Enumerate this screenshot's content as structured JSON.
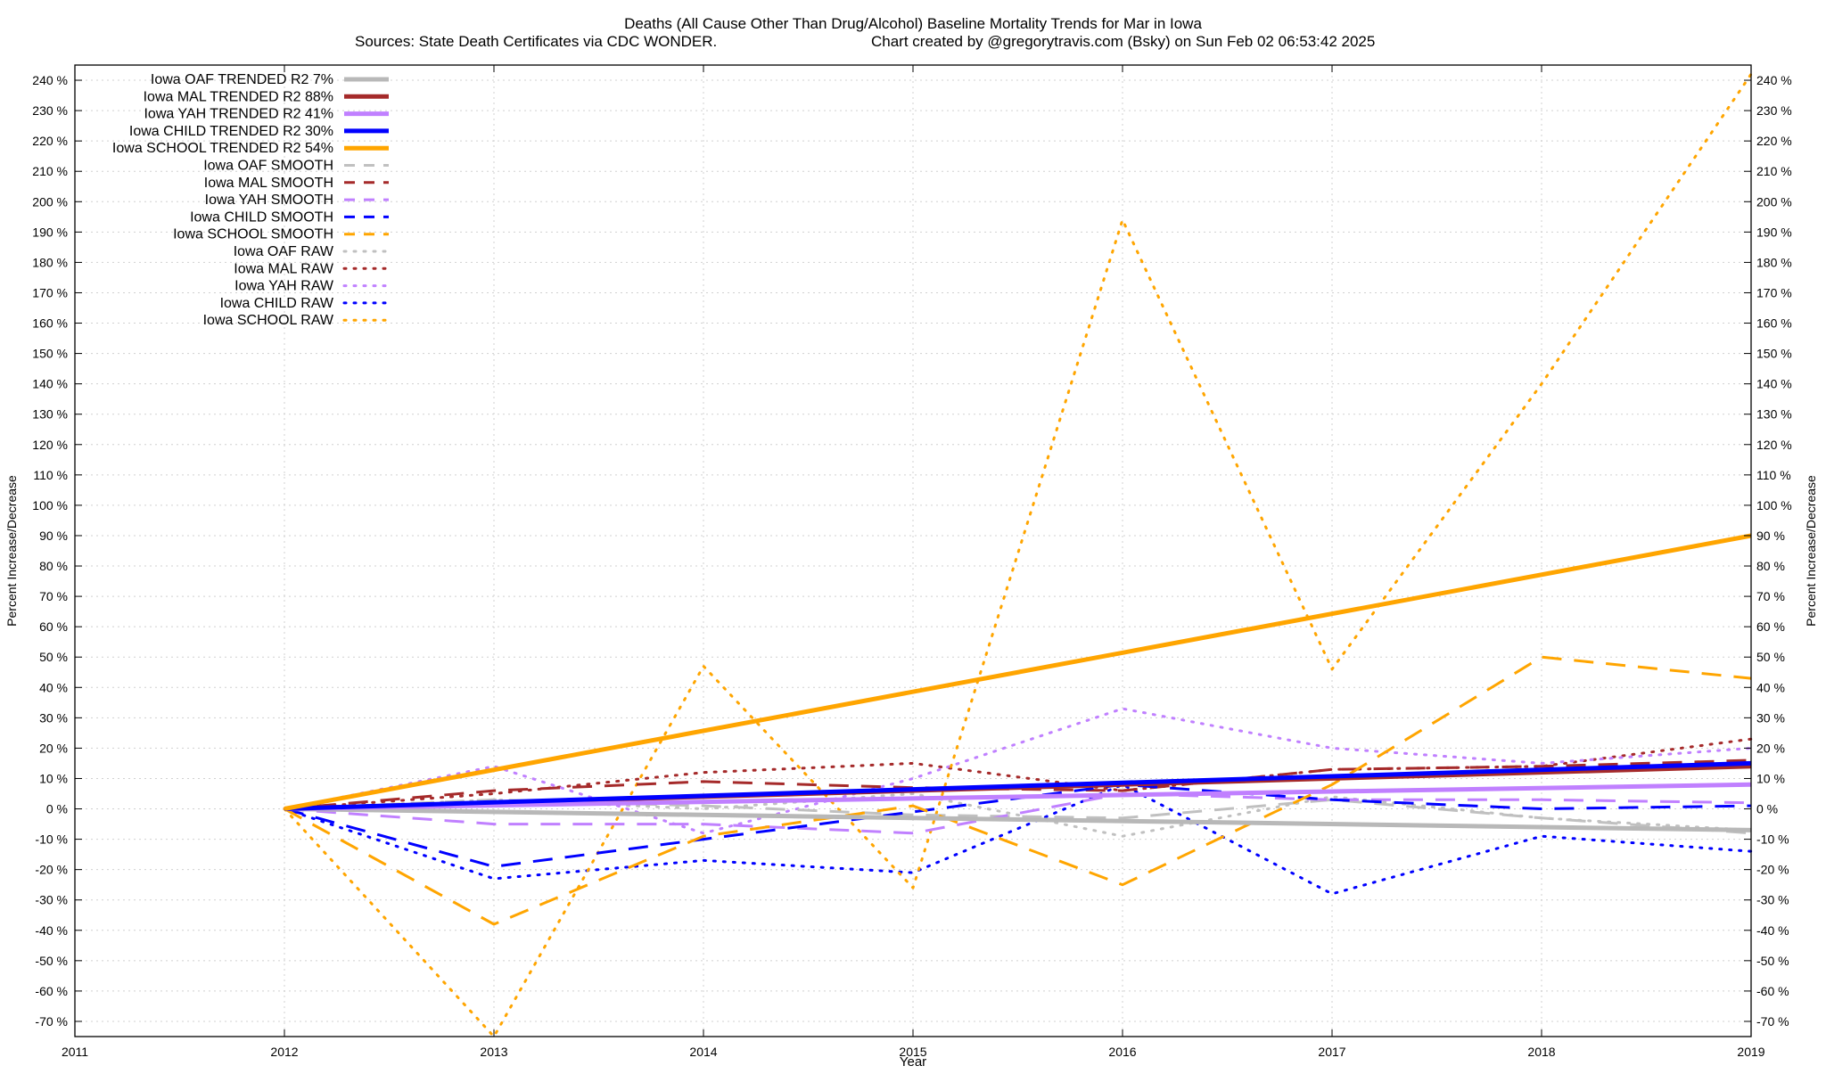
{
  "chart_data": {
    "type": "line",
    "title_line1": "Deaths (All Cause Other Than Drug/Alcohol)  Baseline Mortality Trends for Mar in Iowa",
    "title_line2_left": "Sources: State Death Certificates via CDC WONDER.",
    "title_line2_right": "Chart created by @gregorytravis.com (Bsky) on Sun Feb 02 06:53:42 2025",
    "xlabel": "Year",
    "ylabel": "Percent Increase/Decrease",
    "xlim": [
      2011,
      2019
    ],
    "ylim": [
      -75,
      245
    ],
    "x_ticks": [
      2011,
      2012,
      2013,
      2014,
      2015,
      2016,
      2017,
      2018,
      2019
    ],
    "y_ticks": [
      -70,
      -60,
      -50,
      -40,
      -30,
      -20,
      -10,
      0,
      10,
      20,
      30,
      40,
      50,
      60,
      70,
      80,
      90,
      100,
      110,
      120,
      130,
      140,
      150,
      160,
      170,
      180,
      190,
      200,
      210,
      220,
      230,
      240
    ],
    "y_tick_suffix": " %",
    "grid": true,
    "legend_position": "top-left",
    "series": [
      {
        "name": "Iowa OAF TRENDED R2  7%",
        "style": "trend",
        "color": "#b8b8b8",
        "x": [
          2012,
          2019
        ],
        "values": [
          0,
          -7
        ]
      },
      {
        "name": "Iowa MAL TRENDED R2  88%",
        "style": "trend",
        "color": "#a52a2a",
        "x": [
          2012,
          2019
        ],
        "values": [
          0,
          14
        ]
      },
      {
        "name": "Iowa YAH TRENDED R2  41%",
        "style": "trend",
        "color": "#c080ff",
        "x": [
          2012,
          2019
        ],
        "values": [
          0,
          8
        ]
      },
      {
        "name": "Iowa CHILD TRENDED R2  30%",
        "style": "trend",
        "color": "#0000ff",
        "x": [
          2012,
          2019
        ],
        "values": [
          0,
          15
        ]
      },
      {
        "name": "Iowa SCHOOL TRENDED R2  54%",
        "style": "trend",
        "color": "#ffa500",
        "x": [
          2012,
          2019
        ],
        "values": [
          0,
          90
        ]
      },
      {
        "name": "Iowa OAF SMOOTH",
        "style": "smooth",
        "color": "#c0c0c0",
        "x": [
          2012,
          2013,
          2014,
          2015,
          2016,
          2017,
          2018,
          2019
        ],
        "values": [
          0,
          3,
          1,
          -2,
          -3,
          3,
          -3,
          -8
        ]
      },
      {
        "name": "Iowa MAL SMOOTH",
        "style": "smooth",
        "color": "#a52a2a",
        "x": [
          2012,
          2013,
          2014,
          2015,
          2016,
          2017,
          2018,
          2019
        ],
        "values": [
          0,
          6,
          9,
          7,
          6,
          13,
          14,
          16
        ]
      },
      {
        "name": "Iowa YAH SMOOTH",
        "style": "smooth",
        "color": "#c080ff",
        "x": [
          2012,
          2013,
          2014,
          2015,
          2016,
          2017,
          2018,
          2019
        ],
        "values": [
          0,
          -5,
          -5,
          -8,
          5,
          3,
          3,
          2
        ]
      },
      {
        "name": "Iowa CHILD SMOOTH",
        "style": "smooth",
        "color": "#0000ff",
        "x": [
          2012,
          2013,
          2014,
          2015,
          2016,
          2017,
          2018,
          2019
        ],
        "values": [
          0,
          -19,
          -10,
          -1,
          8,
          3,
          0,
          1
        ]
      },
      {
        "name": "Iowa SCHOOL SMOOTH",
        "style": "smooth",
        "color": "#ffa500",
        "x": [
          2012,
          2013,
          2014,
          2015,
          2016,
          2017,
          2018,
          2019
        ],
        "values": [
          0,
          -38,
          -9,
          1,
          -25,
          8,
          50,
          43
        ]
      },
      {
        "name": "Iowa OAF RAW",
        "style": "raw",
        "color": "#c0c0c0",
        "x": [
          2012,
          2013,
          2014,
          2015,
          2016,
          2017,
          2018,
          2019
        ],
        "values": [
          0,
          3,
          0,
          5,
          -9,
          4,
          -3,
          -7
        ]
      },
      {
        "name": "Iowa MAL RAW",
        "style": "raw",
        "color": "#a52a2a",
        "x": [
          2012,
          2013,
          2014,
          2015,
          2016,
          2017,
          2018,
          2019
        ],
        "values": [
          0,
          5,
          12,
          15,
          6,
          13,
          14,
          23
        ]
      },
      {
        "name": "Iowa YAH RAW",
        "style": "raw",
        "color": "#c080ff",
        "x": [
          2012,
          2013,
          2014,
          2015,
          2016,
          2017,
          2018,
          2019
        ],
        "values": [
          0,
          14,
          -8,
          10,
          33,
          20,
          15,
          20
        ]
      },
      {
        "name": "Iowa CHILD RAW",
        "style": "raw",
        "color": "#0000ff",
        "x": [
          2012,
          2013,
          2014,
          2015,
          2016,
          2017,
          2018,
          2019
        ],
        "values": [
          0,
          -23,
          -17,
          -21,
          8,
          -28,
          -9,
          -14
        ]
      },
      {
        "name": "Iowa SCHOOL RAW",
        "style": "raw",
        "color": "#ffa500",
        "x": [
          2012,
          2013,
          2014,
          2015,
          2016,
          2017,
          2018,
          2019
        ],
        "values": [
          0,
          -75,
          47,
          -26,
          194,
          46,
          140,
          242
        ]
      }
    ]
  }
}
